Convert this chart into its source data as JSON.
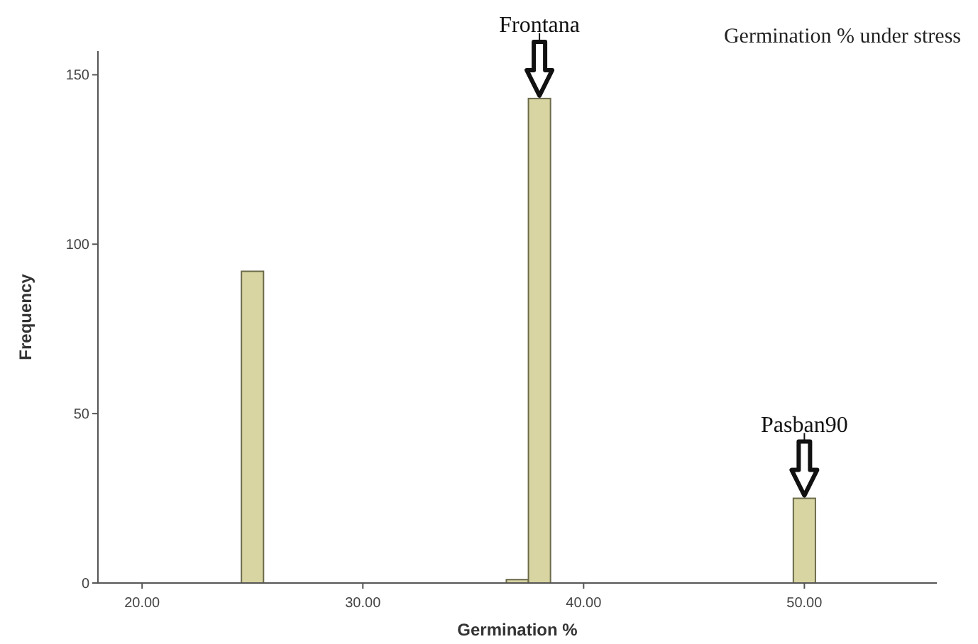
{
  "chart_data": {
    "type": "histogram",
    "title": "Germination % under stress",
    "xlabel": "Germination %",
    "ylabel": "Frequency",
    "bins": [
      24.5,
      25.5,
      36.5,
      37.5,
      38.5,
      49.5,
      50.5
    ],
    "values": [
      92,
      0,
      1,
      143,
      0,
      25
    ],
    "color": "#d8d5a3",
    "xlim": [
      18,
      56
    ],
    "ylim": [
      0,
      157
    ],
    "xticks": [
      {
        "value": 20,
        "label": "20.00"
      },
      {
        "value": 30,
        "label": "30.00"
      },
      {
        "value": 40,
        "label": "40.00"
      },
      {
        "value": 50,
        "label": "50.00"
      }
    ],
    "yticks": [
      0,
      50,
      100,
      150
    ],
    "grid": false,
    "annotations": [
      {
        "text": "Frontana",
        "x": 38,
        "y": 143
      },
      {
        "text": "Pasban90",
        "x": 50,
        "y": 25
      }
    ]
  }
}
